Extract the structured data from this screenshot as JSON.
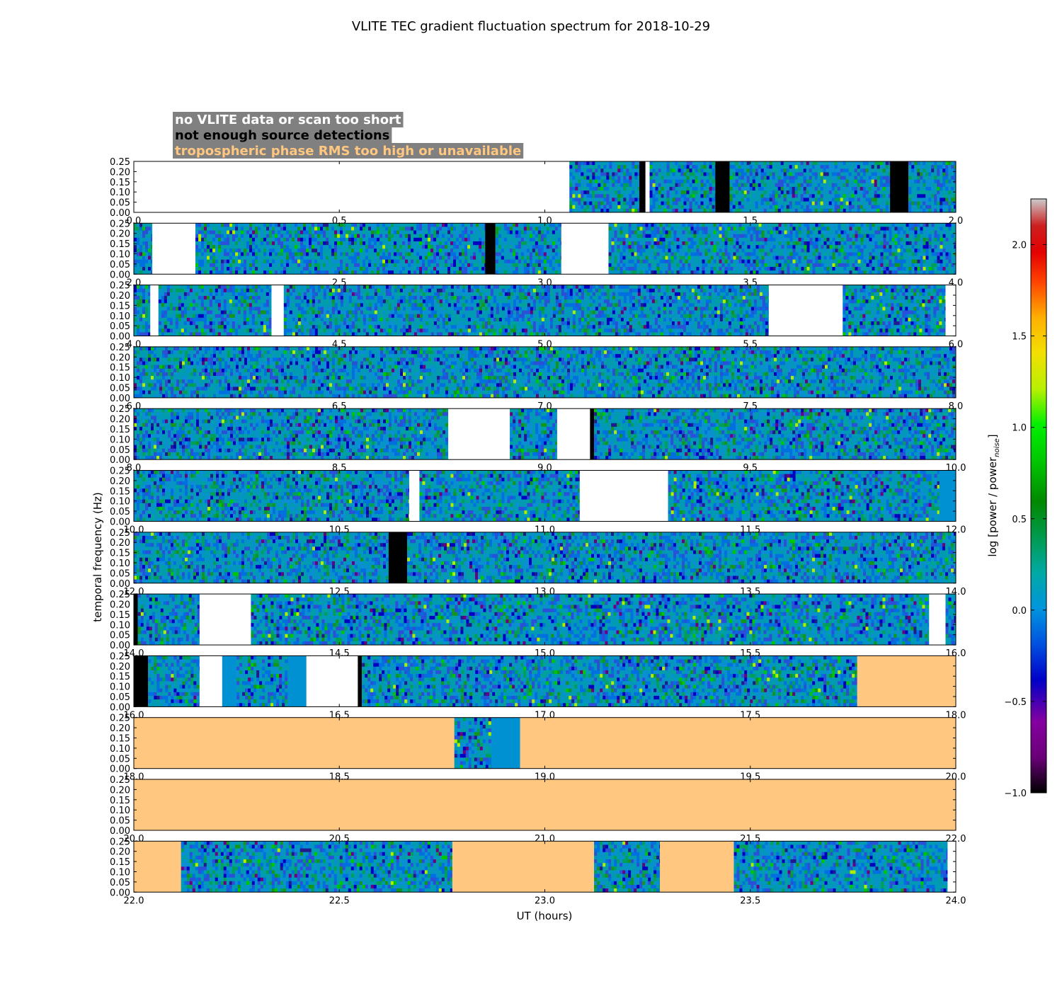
{
  "chart_data": {
    "type": "heatmap",
    "title": "VLITE TEC gradient fluctuation spectrum for 2018-10-29",
    "xlabel": "UT (hours)",
    "ylabel": "temporal frequency (Hz)",
    "colorbar_label": "log [power / power",
    "colorbar_label_sub": "noise",
    "colorbar_label_end": "]",
    "colorbar_range": [
      -1.0,
      2.25
    ],
    "colorbar_ticks": [
      "2.0",
      "1.5",
      "1.0",
      "0.5",
      "0.0",
      "−0.5",
      "−1.0"
    ],
    "colorbar_tick_values": [
      2.0,
      1.5,
      1.0,
      0.5,
      0.0,
      -0.5,
      -1.0
    ],
    "colormap": "nipy_spectral",
    "ylim": [
      0.0,
      0.25
    ],
    "y_tick_labels": [
      "0.25",
      "0.20",
      "0.15",
      "0.10",
      "0.05",
      "0.00"
    ],
    "y_tick_values": [
      0.25,
      0.2,
      0.15,
      0.1,
      0.05,
      0.0
    ],
    "legend": [
      {
        "text": "no VLITE data or scan too short",
        "color": "#ffffff"
      },
      {
        "text": "not enough source detections",
        "color": "#000000"
      },
      {
        "text": "tropospheric phase RMS too high or unavailable",
        "color": "#ffc77f"
      }
    ],
    "legend_placement": "top-left",
    "legend_background": "#808080",
    "category_colors": {
      "none": "#ffffff",
      "nodet": "#000000",
      "tropo": "#ffc77f",
      "flat": "#0091d2"
    },
    "panels": [
      {
        "range": [
          0,
          2
        ],
        "tick_labels": [
          "0.0",
          "0.5",
          "1.0",
          "1.5",
          "2.0"
        ],
        "segments": [
          {
            "start": 0.0,
            "end": 1.06,
            "kind": "none"
          },
          {
            "start": 1.06,
            "end": 1.23,
            "kind": "data"
          },
          {
            "start": 1.23,
            "end": 1.245,
            "kind": "nodet"
          },
          {
            "start": 1.245,
            "end": 1.255,
            "kind": "none"
          },
          {
            "start": 1.255,
            "end": 1.415,
            "kind": "data"
          },
          {
            "start": 1.415,
            "end": 1.45,
            "kind": "nodet"
          },
          {
            "start": 1.45,
            "end": 1.84,
            "kind": "data"
          },
          {
            "start": 1.84,
            "end": 1.885,
            "kind": "nodet"
          },
          {
            "start": 1.885,
            "end": 2.0,
            "kind": "data"
          }
        ]
      },
      {
        "range": [
          2,
          4
        ],
        "tick_labels": [
          "2.0",
          "2.5",
          "3.0",
          "3.5",
          "4.0"
        ],
        "segments": [
          {
            "start": 2.0,
            "end": 2.045,
            "kind": "data"
          },
          {
            "start": 2.045,
            "end": 2.15,
            "kind": "none"
          },
          {
            "start": 2.15,
            "end": 2.855,
            "kind": "data"
          },
          {
            "start": 2.855,
            "end": 2.88,
            "kind": "nodet"
          },
          {
            "start": 2.88,
            "end": 3.04,
            "kind": "data"
          },
          {
            "start": 3.04,
            "end": 3.155,
            "kind": "none"
          },
          {
            "start": 3.155,
            "end": 4.0,
            "kind": "data"
          }
        ]
      },
      {
        "range": [
          4,
          6
        ],
        "tick_labels": [
          "4.0",
          "4.5",
          "5.0",
          "5.5",
          "6.0"
        ],
        "segments": [
          {
            "start": 4.0,
            "end": 4.04,
            "kind": "data"
          },
          {
            "start": 4.04,
            "end": 4.06,
            "kind": "none"
          },
          {
            "start": 4.06,
            "end": 4.335,
            "kind": "data"
          },
          {
            "start": 4.335,
            "end": 4.365,
            "kind": "none"
          },
          {
            "start": 4.365,
            "end": 5.545,
            "kind": "data"
          },
          {
            "start": 5.545,
            "end": 5.725,
            "kind": "none"
          },
          {
            "start": 5.725,
            "end": 5.975,
            "kind": "data"
          },
          {
            "start": 5.975,
            "end": 6.0,
            "kind": "none"
          }
        ]
      },
      {
        "range": [
          6,
          8
        ],
        "tick_labels": [
          "6.0",
          "6.5",
          "7.0",
          "7.5",
          "8.0"
        ],
        "segments": [
          {
            "start": 6.0,
            "end": 8.0,
            "kind": "data"
          }
        ]
      },
      {
        "range": [
          8,
          10
        ],
        "tick_labels": [
          "8.0",
          "8.5",
          "9.0",
          "9.5",
          "10.0"
        ],
        "segments": [
          {
            "start": 8.0,
            "end": 8.765,
            "kind": "data"
          },
          {
            "start": 8.765,
            "end": 8.915,
            "kind": "none"
          },
          {
            "start": 8.915,
            "end": 9.03,
            "kind": "data"
          },
          {
            "start": 9.03,
            "end": 9.11,
            "kind": "none"
          },
          {
            "start": 9.11,
            "end": 9.12,
            "kind": "nodet"
          },
          {
            "start": 9.12,
            "end": 10.0,
            "kind": "data"
          }
        ]
      },
      {
        "range": [
          10,
          12
        ],
        "tick_labels": [
          "10.0",
          "10.5",
          "11.0",
          "11.5",
          "12.0"
        ],
        "segments": [
          {
            "start": 10.0,
            "end": 10.67,
            "kind": "data"
          },
          {
            "start": 10.67,
            "end": 10.695,
            "kind": "none"
          },
          {
            "start": 10.695,
            "end": 11.085,
            "kind": "data"
          },
          {
            "start": 11.085,
            "end": 11.3,
            "kind": "none"
          },
          {
            "start": 11.3,
            "end": 11.96,
            "kind": "data"
          },
          {
            "start": 11.96,
            "end": 12.0,
            "kind": "flat"
          }
        ]
      },
      {
        "range": [
          12,
          14
        ],
        "tick_labels": [
          "12.0",
          "12.5",
          "13.0",
          "13.5",
          "14.0"
        ],
        "segments": [
          {
            "start": 12.0,
            "end": 12.62,
            "kind": "data"
          },
          {
            "start": 12.62,
            "end": 12.665,
            "kind": "nodet"
          },
          {
            "start": 12.665,
            "end": 14.0,
            "kind": "data"
          }
        ]
      },
      {
        "range": [
          14,
          16
        ],
        "tick_labels": [
          "14.0",
          "14.5",
          "15.0",
          "15.5",
          "16.0"
        ],
        "segments": [
          {
            "start": 14.0,
            "end": 14.01,
            "kind": "nodet"
          },
          {
            "start": 14.01,
            "end": 14.16,
            "kind": "data"
          },
          {
            "start": 14.16,
            "end": 14.285,
            "kind": "none"
          },
          {
            "start": 14.285,
            "end": 15.935,
            "kind": "data"
          },
          {
            "start": 15.935,
            "end": 15.975,
            "kind": "none"
          },
          {
            "start": 15.975,
            "end": 16.0,
            "kind": "data"
          }
        ]
      },
      {
        "range": [
          16,
          18
        ],
        "tick_labels": [
          "16.0",
          "16.5",
          "17.0",
          "17.5",
          "18.0"
        ],
        "segments": [
          {
            "start": 16.0,
            "end": 16.035,
            "kind": "nodet"
          },
          {
            "start": 16.035,
            "end": 16.16,
            "kind": "data"
          },
          {
            "start": 16.16,
            "end": 16.215,
            "kind": "none"
          },
          {
            "start": 16.215,
            "end": 16.25,
            "kind": "flat"
          },
          {
            "start": 16.25,
            "end": 16.375,
            "kind": "data"
          },
          {
            "start": 16.375,
            "end": 16.42,
            "kind": "flat"
          },
          {
            "start": 16.42,
            "end": 16.545,
            "kind": "none"
          },
          {
            "start": 16.545,
            "end": 16.555,
            "kind": "nodet"
          },
          {
            "start": 16.555,
            "end": 17.76,
            "kind": "data"
          },
          {
            "start": 17.76,
            "end": 18.0,
            "kind": "tropo"
          }
        ]
      },
      {
        "range": [
          18,
          20
        ],
        "tick_labels": [
          "18.0",
          "18.5",
          "19.0",
          "19.5",
          "20.0"
        ],
        "segments": [
          {
            "start": 18.0,
            "end": 18.78,
            "kind": "tropo"
          },
          {
            "start": 18.78,
            "end": 18.87,
            "kind": "data"
          },
          {
            "start": 18.87,
            "end": 18.94,
            "kind": "flat"
          },
          {
            "start": 18.94,
            "end": 20.0,
            "kind": "tropo"
          }
        ]
      },
      {
        "range": [
          20,
          22
        ],
        "tick_labels": [
          "20.0",
          "20.5",
          "21.0",
          "21.5",
          "22.0"
        ],
        "segments": [
          {
            "start": 20.0,
            "end": 22.0,
            "kind": "tropo"
          }
        ]
      },
      {
        "range": [
          22,
          24
        ],
        "tick_labels": [
          "22.0",
          "22.5",
          "23.0",
          "23.5",
          "24.0"
        ],
        "segments": [
          {
            "start": 22.0,
            "end": 22.115,
            "kind": "tropo"
          },
          {
            "start": 22.115,
            "end": 22.775,
            "kind": "data"
          },
          {
            "start": 22.775,
            "end": 23.12,
            "kind": "tropo"
          },
          {
            "start": 23.12,
            "end": 23.28,
            "kind": "data"
          },
          {
            "start": 23.28,
            "end": 23.46,
            "kind": "tropo"
          },
          {
            "start": 23.46,
            "end": 23.98,
            "kind": "data"
          },
          {
            "start": 23.98,
            "end": 24.0,
            "kind": "none"
          }
        ]
      }
    ]
  }
}
